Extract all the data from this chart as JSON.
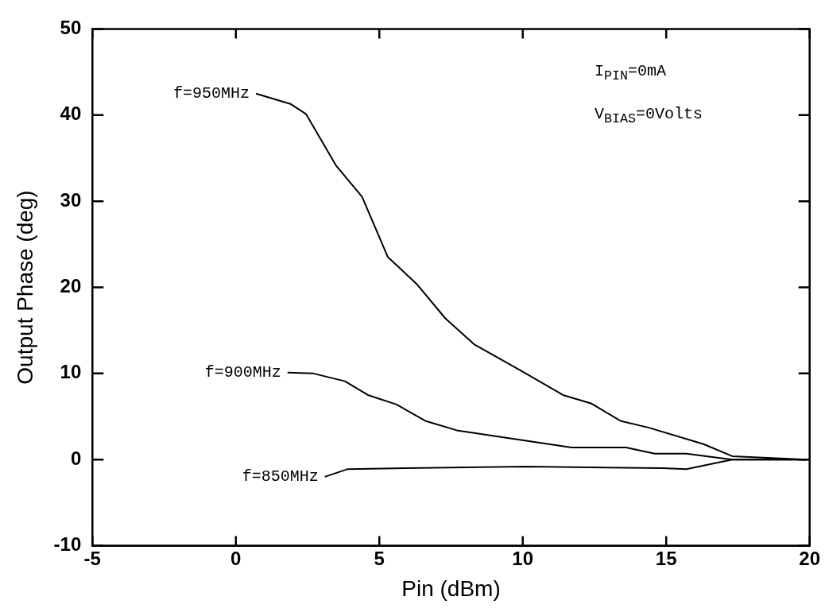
{
  "chart_data": {
    "type": "line",
    "xlabel": "Pin (dBm)",
    "ylabel": "Output Phase (deg)",
    "xlim": [
      -5,
      20
    ],
    "xticks": [
      -5,
      0,
      5,
      10,
      15,
      20
    ],
    "ylim": [
      -10,
      50
    ],
    "yticks": [
      -10,
      0,
      10,
      20,
      30,
      40,
      50
    ],
    "grid": false,
    "legend": false,
    "marker": "none",
    "line_style": "solid",
    "annotations": [
      "I$_{PIN}$=0mA",
      "V$_{BIAS}$=0Volts"
    ],
    "series": [
      {
        "name": "f=950MHz",
        "color": "#000000",
        "x": [
          0.7,
          1.9,
          2.45,
          3.5,
          4.4,
          5.3,
          6.3,
          7.3,
          8.3,
          10.0,
          11.4,
          12.4,
          13.4,
          14.4,
          16.3,
          17.3,
          19.9
        ],
        "values": [
          42.5,
          41.3,
          40.1,
          34.1,
          30.5,
          23.5,
          20.4,
          16.4,
          13.4,
          10.2,
          7.5,
          6.5,
          4.5,
          3.7,
          1.8,
          0.4,
          0
        ]
      },
      {
        "name": "f=900MHz",
        "color": "#000000",
        "x": [
          1.8,
          2.7,
          3.8,
          4.6,
          5.6,
          6.6,
          7.7,
          9.7,
          11.7,
          13.6,
          14.6,
          15.7,
          17.3,
          19.9
        ],
        "values": [
          10.1,
          10,
          9.1,
          7.5,
          6.4,
          4.5,
          3.4,
          2.4,
          1.4,
          1.4,
          0.7,
          0.7,
          0,
          0
        ]
      },
      {
        "name": "f=850MHz",
        "color": "#000000",
        "x": [
          3.1,
          3.9,
          5.9,
          10.1,
          14.9,
          15.7,
          17.3,
          19.9
        ],
        "values": [
          -2.0,
          -1.1,
          -1.0,
          -0.8,
          -1.0,
          -1.1,
          0,
          0
        ]
      }
    ]
  }
}
